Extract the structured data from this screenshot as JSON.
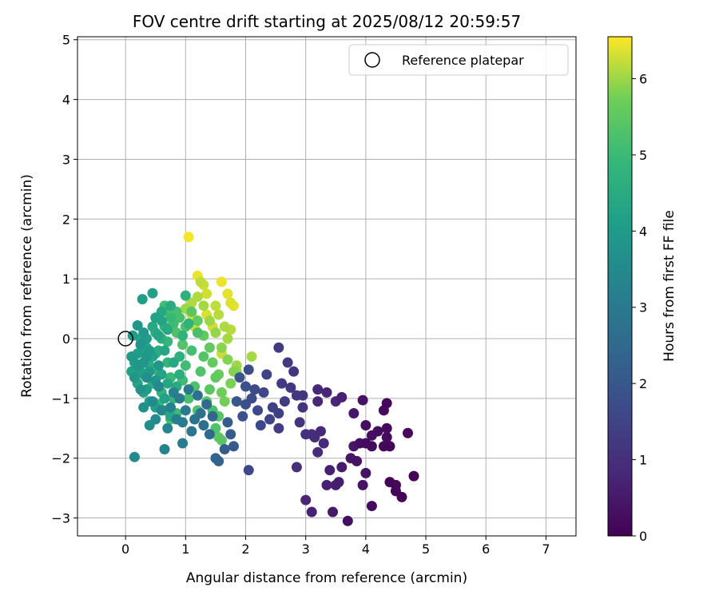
{
  "chart_data": {
    "type": "scatter",
    "title": "FOV centre drift starting at 2025/08/12 20:59:57",
    "xlabel": "Angular distance from reference (arcmin)",
    "ylabel": "Rotation from reference (arcmin)",
    "xlim": [
      -0.8,
      7.5
    ],
    "ylim": [
      -3.3,
      5.05
    ],
    "xticks": [
      0,
      1,
      2,
      3,
      4,
      5,
      6,
      7
    ],
    "yticks": [
      -3,
      -2,
      -1,
      0,
      1,
      2,
      3,
      4,
      5
    ],
    "grid": true,
    "legend": {
      "placement": "upper-right",
      "entries": [
        "Reference platepar"
      ]
    },
    "reference_point": {
      "x": 0,
      "y": 0
    },
    "colorbar": {
      "label": "Hours from first FF file",
      "range": [
        0,
        6.55
      ],
      "ticks": [
        0,
        1,
        2,
        3,
        4,
        5,
        6
      ],
      "colormap": "viridis"
    },
    "points": [
      [
        4.8,
        -2.3,
        0.05
      ],
      [
        4.6,
        -2.65,
        0.08
      ],
      [
        4.5,
        -2.55,
        0.12
      ],
      [
        4.4,
        -2.4,
        0.1
      ],
      [
        4.7,
        -1.58,
        0.15
      ],
      [
        4.35,
        -1.08,
        0.12
      ],
      [
        4.3,
        -1.2,
        0.18
      ],
      [
        4.35,
        -1.5,
        0.2
      ],
      [
        4.35,
        -1.65,
        0.22
      ],
      [
        4.2,
        -1.55,
        0.25
      ],
      [
        4.3,
        -1.8,
        0.15
      ],
      [
        4.1,
        -1.8,
        0.2
      ],
      [
        4.1,
        -1.62,
        0.28
      ],
      [
        4.0,
        -1.45,
        0.3
      ],
      [
        4.0,
        -1.75,
        0.25
      ],
      [
        3.95,
        -1.03,
        0.35
      ],
      [
        3.9,
        -1.75,
        0.3
      ],
      [
        4.1,
        -2.8,
        0.22
      ],
      [
        4.0,
        -2.25,
        0.35
      ],
      [
        3.95,
        -2.45,
        0.4
      ],
      [
        3.85,
        -2.05,
        0.38
      ],
      [
        3.8,
        -1.8,
        0.42
      ],
      [
        3.75,
        -2.0,
        0.45
      ],
      [
        3.7,
        -3.05,
        0.3
      ],
      [
        3.8,
        -1.25,
        0.45
      ],
      [
        4.4,
        -1.8,
        0.1
      ],
      [
        4.5,
        -2.45,
        0.15
      ],
      [
        3.6,
        -2.15,
        0.55
      ],
      [
        3.55,
        -2.4,
        0.6
      ],
      [
        3.5,
        -2.45,
        0.58
      ],
      [
        3.4,
        -2.2,
        0.62
      ],
      [
        3.35,
        -2.45,
        0.65
      ],
      [
        3.45,
        -2.9,
        0.5
      ],
      [
        3.6,
        -0.98,
        0.7
      ],
      [
        3.5,
        -1.05,
        0.75
      ],
      [
        3.35,
        -0.9,
        0.78
      ],
      [
        3.2,
        -0.85,
        0.85
      ],
      [
        3.2,
        -1.05,
        0.8
      ],
      [
        3.25,
        -1.55,
        0.9
      ],
      [
        3.3,
        -1.75,
        0.88
      ],
      [
        3.15,
        -1.65,
        0.95
      ],
      [
        3.2,
        -1.9,
        0.92
      ],
      [
        3.1,
        -1.6,
        1.0
      ],
      [
        3.1,
        -2.9,
        0.7
      ],
      [
        3.0,
        -2.7,
        0.75
      ],
      [
        2.85,
        -2.15,
        1.0
      ],
      [
        3.0,
        -1.6,
        1.05
      ],
      [
        2.9,
        -1.4,
        1.1
      ],
      [
        2.95,
        -1.15,
        1.1
      ],
      [
        2.95,
        -0.95,
        1.15
      ],
      [
        2.85,
        -0.95,
        1.2
      ],
      [
        2.75,
        -0.82,
        1.2
      ],
      [
        2.8,
        -0.55,
        1.15
      ],
      [
        2.7,
        -0.4,
        1.25
      ],
      [
        2.55,
        -0.15,
        1.3
      ],
      [
        2.6,
        -0.75,
        1.3
      ],
      [
        2.65,
        -1.05,
        1.35
      ],
      [
        2.55,
        -1.25,
        1.4
      ],
      [
        2.55,
        -1.5,
        1.35
      ],
      [
        2.45,
        -1.15,
        1.45
      ],
      [
        2.4,
        -1.35,
        1.5
      ],
      [
        2.35,
        -0.6,
        1.5
      ],
      [
        2.3,
        -0.9,
        1.55
      ],
      [
        2.25,
        -1.45,
        1.6
      ],
      [
        2.2,
        -1.2,
        1.65
      ],
      [
        2.15,
        -0.85,
        1.7
      ],
      [
        2.1,
        -1.0,
        1.7
      ],
      [
        2.05,
        -0.52,
        1.75
      ],
      [
        2.0,
        -1.1,
        1.8
      ],
      [
        2.05,
        -2.2,
        1.6
      ],
      [
        2.0,
        -0.8,
        1.85
      ],
      [
        1.95,
        -1.3,
        1.9
      ],
      [
        1.9,
        -0.65,
        1.95
      ],
      [
        1.85,
        -1.05,
        2.0
      ],
      [
        1.8,
        -1.8,
        2.05
      ],
      [
        1.75,
        -1.6,
        2.1
      ],
      [
        1.7,
        -1.4,
        2.15
      ],
      [
        1.65,
        -1.85,
        2.2
      ],
      [
        1.55,
        -2.05,
        2.3
      ],
      [
        1.5,
        -2.0,
        2.35
      ],
      [
        1.45,
        -1.3,
        2.4
      ],
      [
        1.4,
        -1.6,
        2.5
      ],
      [
        1.35,
        -1.1,
        2.55
      ],
      [
        1.3,
        -1.45,
        2.6
      ],
      [
        1.25,
        -1.25,
        2.7
      ],
      [
        1.2,
        -0.95,
        2.75
      ],
      [
        1.15,
        -1.35,
        2.8
      ],
      [
        1.1,
        -1.55,
        2.85
      ],
      [
        1.05,
        -0.85,
        2.95
      ],
      [
        1.0,
        -1.2,
        3.0
      ],
      [
        0.95,
        -1.4,
        3.05
      ],
      [
        0.95,
        -1.75,
        3.05
      ],
      [
        0.9,
        -1.0,
        3.1
      ],
      [
        0.85,
        -1.35,
        3.15
      ],
      [
        0.8,
        -0.9,
        3.2
      ],
      [
        0.75,
        -1.15,
        3.25
      ],
      [
        0.7,
        -1.5,
        3.35
      ],
      [
        0.65,
        -1.85,
        3.3
      ],
      [
        0.6,
        -1.2,
        3.4
      ],
      [
        0.55,
        -0.8,
        3.45
      ],
      [
        0.5,
        -1.35,
        3.5
      ],
      [
        0.45,
        -1.05,
        3.55
      ],
      [
        0.4,
        -1.45,
        3.6
      ],
      [
        0.35,
        -0.65,
        3.65
      ],
      [
        0.3,
        -1.15,
        3.7
      ],
      [
        0.25,
        -0.85,
        3.75
      ],
      [
        0.2,
        -0.45,
        3.85
      ],
      [
        0.15,
        -1.98,
        3.5
      ],
      [
        0.15,
        -0.65,
        3.9
      ],
      [
        0.1,
        -0.3,
        3.95
      ],
      [
        0.12,
        0.05,
        4.0
      ],
      [
        0.2,
        0.22,
        3.9
      ],
      [
        0.25,
        -0.1,
        3.8
      ],
      [
        0.3,
        0.1,
        3.95
      ],
      [
        0.35,
        -0.3,
        3.95
      ],
      [
        0.28,
        0.66,
        4.1
      ],
      [
        0.45,
        0.76,
        4.2
      ],
      [
        0.5,
        0.35,
        4.25
      ],
      [
        0.55,
        0.05,
        4.3
      ],
      [
        0.6,
        0.45,
        4.4
      ],
      [
        0.65,
        -0.2,
        4.35
      ],
      [
        0.7,
        0.15,
        4.45
      ],
      [
        0.75,
        0.55,
        4.5
      ],
      [
        0.8,
        -0.4,
        4.4
      ],
      [
        1.0,
        0.72,
        4.7
      ],
      [
        1.05,
        0.25,
        4.75
      ],
      [
        0.9,
        -0.6,
        4.6
      ],
      [
        0.4,
        -0.2,
        4.0
      ],
      [
        0.35,
        0.0,
        4.05
      ],
      [
        0.3,
        -0.4,
        3.85
      ],
      [
        0.4,
        -0.55,
        3.95
      ],
      [
        0.2,
        -0.25,
        4.1
      ],
      [
        0.25,
        -0.55,
        4.15
      ],
      [
        0.5,
        -0.7,
        3.8
      ],
      [
        0.55,
        -0.45,
        3.9
      ],
      [
        0.45,
        -0.3,
        4.2
      ],
      [
        0.6,
        -0.6,
        4.3
      ],
      [
        0.65,
        -1.0,
        4.2
      ],
      [
        0.7,
        -0.75,
        4.35
      ],
      [
        0.35,
        -0.85,
        4.05
      ],
      [
        0.4,
        -1.05,
        4.1
      ],
      [
        0.5,
        -1.15,
        4.15
      ],
      [
        0.3,
        -0.9,
        4.25
      ],
      [
        0.75,
        -1.3,
        4.35
      ],
      [
        0.85,
        -0.8,
        4.5
      ],
      [
        0.9,
        -0.3,
        4.65
      ],
      [
        0.95,
        0.05,
        4.75
      ],
      [
        0.3,
        -0.2,
        4.45
      ],
      [
        0.4,
        -0.45,
        4.6
      ],
      [
        0.5,
        -0.25,
        4.7
      ],
      [
        0.55,
        -0.55,
        4.8
      ],
      [
        0.45,
        -0.75,
        4.55
      ],
      [
        0.6,
        -0.9,
        4.75
      ],
      [
        0.7,
        -0.4,
        4.85
      ],
      [
        0.75,
        -0.65,
        4.95
      ],
      [
        0.8,
        -1.0,
        4.85
      ],
      [
        0.65,
        -1.2,
        5.0
      ],
      [
        0.55,
        -1.1,
        4.9
      ],
      [
        0.85,
        -1.25,
        5.0
      ],
      [
        0.95,
        -0.7,
        5.05
      ],
      [
        1.0,
        -0.45,
        5.1
      ],
      [
        1.1,
        -0.2,
        5.15
      ],
      [
        1.2,
        0.1,
        5.2
      ],
      [
        1.05,
        -1.0,
        5.2
      ],
      [
        1.15,
        -0.8,
        5.25
      ],
      [
        1.25,
        -0.55,
        5.3
      ],
      [
        1.3,
        -0.3,
        5.35
      ],
      [
        1.2,
        -1.2,
        5.3
      ],
      [
        1.35,
        -1.05,
        5.4
      ],
      [
        1.4,
        -0.85,
        5.45
      ],
      [
        1.5,
        -0.65,
        5.5
      ],
      [
        1.55,
        -1.3,
        5.4
      ],
      [
        0.75,
        -1.35,
        5.25
      ],
      [
        0.65,
        0.55,
        5.1
      ],
      [
        0.7,
        0.45,
        5.2
      ],
      [
        0.9,
        0.35,
        5.2
      ],
      [
        1.0,
        0.2,
        5.25
      ],
      [
        0.85,
        0.1,
        5.3
      ],
      [
        0.95,
        -0.1,
        5.35
      ],
      [
        1.1,
        0.45,
        5.45
      ],
      [
        1.2,
        0.3,
        5.5
      ],
      [
        1.3,
        0.05,
        5.55
      ],
      [
        1.4,
        -0.15,
        5.55
      ],
      [
        1.45,
        -0.4,
        5.6
      ],
      [
        1.55,
        -0.6,
        5.65
      ],
      [
        1.6,
        -0.9,
        5.7
      ],
      [
        1.65,
        -1.05,
        5.75
      ],
      [
        1.75,
        -0.75,
        5.8
      ],
      [
        1.8,
        -0.55,
        5.85
      ],
      [
        1.7,
        -0.35,
        5.85
      ],
      [
        1.6,
        -0.15,
        5.9
      ],
      [
        1.5,
        0.1,
        5.95
      ],
      [
        1.4,
        0.3,
        6.0
      ],
      [
        1.3,
        0.55,
        6.05
      ],
      [
        1.2,
        0.7,
        6.1
      ],
      [
        1.1,
        0.6,
        6.1
      ],
      [
        1.0,
        0.5,
        6.0
      ],
      [
        1.25,
        0.95,
        6.2
      ],
      [
        1.3,
        0.9,
        6.25
      ],
      [
        1.35,
        0.75,
        6.3
      ],
      [
        1.5,
        0.55,
        6.2
      ],
      [
        1.55,
        0.4,
        6.15
      ],
      [
        1.65,
        0.2,
        6.1
      ],
      [
        1.7,
        0.0,
        6.05
      ],
      [
        1.75,
        0.6,
        6.35
      ],
      [
        1.8,
        0.55,
        6.4
      ],
      [
        1.6,
        0.95,
        6.45
      ],
      [
        1.7,
        0.75,
        6.4
      ],
      [
        1.2,
        1.05,
        6.45
      ],
      [
        1.05,
        1.7,
        6.5
      ],
      [
        1.1,
        0.4,
        6.3
      ],
      [
        1.15,
        0.2,
        6.25
      ],
      [
        1.35,
        0.4,
        6.35
      ],
      [
        1.45,
        0.2,
        6.3
      ],
      [
        1.6,
        -0.25,
        6.25
      ],
      [
        1.75,
        0.15,
        6.15
      ],
      [
        1.85,
        -0.45,
        6.0
      ],
      [
        1.85,
        -0.55,
        5.95
      ],
      [
        2.1,
        -0.3,
        6.05
      ],
      [
        1.55,
        -1.65,
        5.5
      ],
      [
        1.6,
        -1.7,
        5.45
      ],
      [
        1.5,
        -1.5,
        5.3
      ],
      [
        1.45,
        -1.2,
        5.15
      ],
      [
        0.25,
        0.0,
        4.3
      ],
      [
        0.3,
        -0.6,
        4.4
      ],
      [
        0.2,
        -0.75,
        4.3
      ],
      [
        0.15,
        -0.4,
        4.2
      ],
      [
        0.1,
        -0.55,
        4.25
      ],
      [
        0.35,
        -0.15,
        4.35
      ],
      [
        0.55,
        -0.2,
        4.55
      ],
      [
        0.5,
        0.1,
        4.5
      ],
      [
        0.6,
        0.0,
        4.65
      ],
      [
        0.65,
        0.2,
        4.75
      ],
      [
        0.7,
        -0.05,
        4.9
      ],
      [
        0.8,
        0.25,
        5.05
      ],
      [
        0.85,
        0.45,
        5.15
      ],
      [
        0.75,
        0.35,
        4.95
      ],
      [
        0.45,
        0.2,
        4.4
      ],
      [
        0.6,
        0.3,
        4.3
      ]
    ]
  }
}
